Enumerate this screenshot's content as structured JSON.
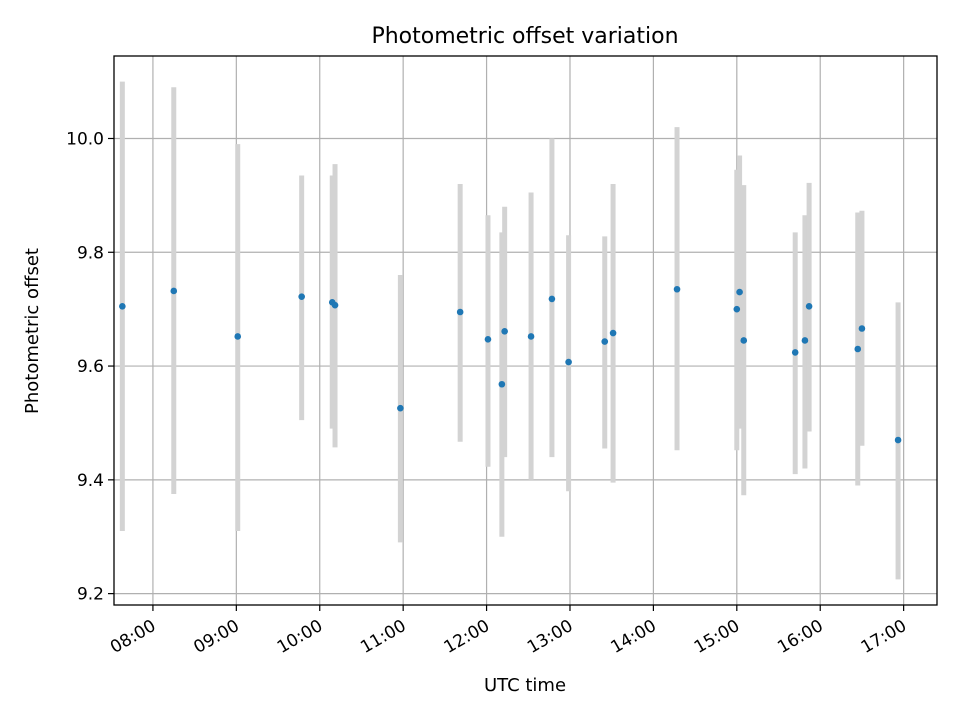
{
  "chart_data": {
    "type": "scatter",
    "title": "Photometric offset variation",
    "xlabel": "UTC time",
    "ylabel": "Photometric offset",
    "xlim": [
      "07:32",
      "17:24"
    ],
    "ylim": [
      9.18,
      10.145
    ],
    "xticks": [
      "08:00",
      "09:00",
      "10:00",
      "11:00",
      "12:00",
      "13:00",
      "14:00",
      "15:00",
      "16:00",
      "17:00"
    ],
    "yticks": [
      9.2,
      9.4,
      9.6,
      9.8,
      10.0
    ],
    "yticklabels": [
      "9.2",
      "9.4",
      "9.6",
      "9.8",
      "10.0"
    ],
    "grid": true,
    "legend": "none",
    "colors": {
      "point": "#1f77b4",
      "errorbar": "#d3d3d3"
    },
    "points": [
      {
        "t": "07:38",
        "y": 9.705,
        "lo": 9.31,
        "hi": 10.1
      },
      {
        "t": "08:15",
        "y": 9.732,
        "lo": 9.375,
        "hi": 10.09
      },
      {
        "t": "09:01",
        "y": 9.652,
        "lo": 9.31,
        "hi": 9.99
      },
      {
        "t": "09:47",
        "y": 9.722,
        "lo": 9.505,
        "hi": 9.935
      },
      {
        "t": "10:09",
        "y": 9.712,
        "lo": 9.49,
        "hi": 9.935
      },
      {
        "t": "10:11",
        "y": 9.707,
        "lo": 9.457,
        "hi": 9.955
      },
      {
        "t": "10:58",
        "y": 9.526,
        "lo": 9.29,
        "hi": 9.76
      },
      {
        "t": "11:41",
        "y": 9.695,
        "lo": 9.467,
        "hi": 9.92
      },
      {
        "t": "12:01",
        "y": 9.647,
        "lo": 9.423,
        "hi": 9.865
      },
      {
        "t": "12:11",
        "y": 9.568,
        "lo": 9.3,
        "hi": 9.835
      },
      {
        "t": "12:13",
        "y": 9.661,
        "lo": 9.44,
        "hi": 9.88
      },
      {
        "t": "12:32",
        "y": 9.652,
        "lo": 9.4,
        "hi": 9.905
      },
      {
        "t": "12:47",
        "y": 9.718,
        "lo": 9.44,
        "hi": 10.0
      },
      {
        "t": "12:59",
        "y": 9.607,
        "lo": 9.38,
        "hi": 9.83
      },
      {
        "t": "13:25",
        "y": 9.643,
        "lo": 9.455,
        "hi": 9.828
      },
      {
        "t": "13:31",
        "y": 9.658,
        "lo": 9.395,
        "hi": 9.92
      },
      {
        "t": "14:17",
        "y": 9.735,
        "lo": 9.452,
        "hi": 10.02
      },
      {
        "t": "15:00",
        "y": 9.7,
        "lo": 9.452,
        "hi": 9.945
      },
      {
        "t": "15:02",
        "y": 9.73,
        "lo": 9.49,
        "hi": 9.97
      },
      {
        "t": "15:05",
        "y": 9.645,
        "lo": 9.373,
        "hi": 9.918
      },
      {
        "t": "15:42",
        "y": 9.624,
        "lo": 9.41,
        "hi": 9.835
      },
      {
        "t": "15:49",
        "y": 9.645,
        "lo": 9.42,
        "hi": 9.865
      },
      {
        "t": "15:52",
        "y": 9.705,
        "lo": 9.485,
        "hi": 9.922
      },
      {
        "t": "16:27",
        "y": 9.63,
        "lo": 9.39,
        "hi": 9.87
      },
      {
        "t": "16:30",
        "y": 9.666,
        "lo": 9.46,
        "hi": 9.873
      },
      {
        "t": "16:56",
        "y": 9.47,
        "lo": 9.225,
        "hi": 9.712
      }
    ]
  }
}
